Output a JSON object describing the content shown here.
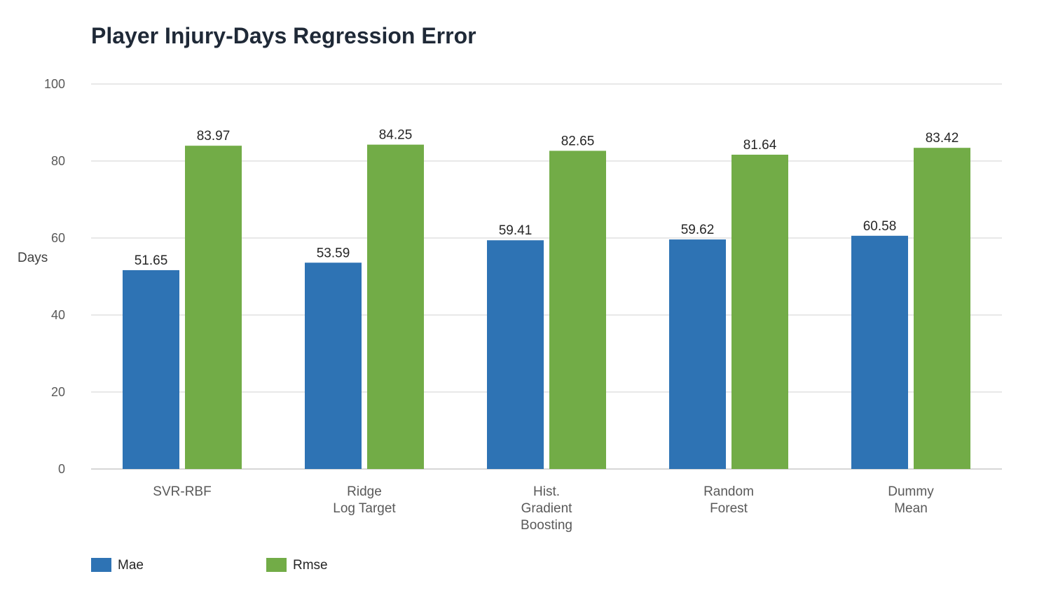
{
  "chart_data": {
    "type": "bar",
    "title": "Player Injury-Days Regression Error",
    "xlabel": "",
    "ylabel": "Days",
    "ylim": [
      0,
      100
    ],
    "yticks": [
      0,
      20,
      40,
      60,
      80,
      100
    ],
    "grid": true,
    "legend_position": "bottom-left",
    "categories": [
      [
        "SVR-RBF"
      ],
      [
        "Ridge",
        "Log Target"
      ],
      [
        "Hist.",
        "Gradient",
        "Boosting"
      ],
      [
        "Random",
        "Forest"
      ],
      [
        "Dummy",
        "Mean"
      ]
    ],
    "series": [
      {
        "name": "Mae",
        "color": "#2e73b4",
        "values": [
          51.65,
          53.59,
          59.41,
          59.62,
          60.58
        ]
      },
      {
        "name": "Rmse",
        "color": "#72ac47",
        "values": [
          83.97,
          84.25,
          82.65,
          81.64,
          83.42
        ]
      }
    ]
  }
}
